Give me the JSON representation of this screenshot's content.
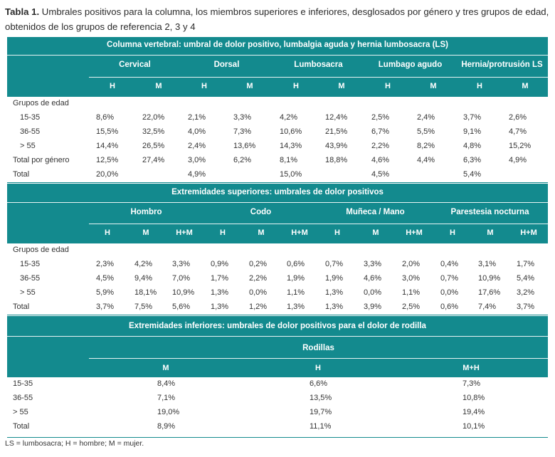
{
  "caption": {
    "bold": "Tabla 1.",
    "text": " Umbrales positivos para la columna, los miembros superiores e inferiores, desglosados por género y tres grupos de edad, obtenidos de los grupos de referencia 2, 3 y 4"
  },
  "t1": {
    "title": "Columna vertebral: umbral de dolor positivo, lumbalgia aguda y hernia lumbosacra (LS)",
    "groups": [
      "Cervical",
      "Dorsal",
      "Lumbosacra",
      "Lumbago agudo",
      "Hernia/protrusión LS"
    ],
    "subs": [
      "H",
      "M",
      "H",
      "M",
      "H",
      "M",
      "H",
      "M",
      "H",
      "M"
    ],
    "section_label": "Grupos de edad",
    "rows": [
      {
        "label": "15-35",
        "values": [
          "8,6%",
          "22,0%",
          "2,1%",
          "3,3%",
          "4,2%",
          "12,4%",
          "2,5%",
          "2,4%",
          "3,7%",
          "2,6%"
        ]
      },
      {
        "label": "36-55",
        "values": [
          "15,5%",
          "32,5%",
          "4,0%",
          "7,3%",
          "10,6%",
          "21,5%",
          "6,7%",
          "5,5%",
          "9,1%",
          "4,7%"
        ]
      },
      {
        "label": "> 55",
        "values": [
          "14,4%",
          "26,5%",
          "2,4%",
          "13,6%",
          "14,3%",
          "43,9%",
          "2,2%",
          "8,2%",
          "4,8%",
          "15,2%"
        ]
      },
      {
        "label": "Total por género",
        "values": [
          "12,5%",
          "27,4%",
          "3,0%",
          "6,2%",
          "8,1%",
          "18,8%",
          "4,6%",
          "4,4%",
          "6,3%",
          "4,9%"
        ]
      },
      {
        "label": "Total",
        "values": [
          "20,0%",
          "",
          "4,9%",
          "",
          "15,0%",
          "",
          "4,5%",
          "",
          "5,4%",
          ""
        ]
      }
    ]
  },
  "t2": {
    "title": "Extremidades superiores: umbrales de dolor positivos",
    "groups": [
      "Hombro",
      "Codo",
      "Muñeca / Mano",
      "Parestesia nocturna"
    ],
    "subs": [
      "H",
      "M",
      "H+M",
      "H",
      "M",
      "H+M",
      "H",
      "M",
      "H+M",
      "H",
      "M",
      "H+M"
    ],
    "section_label": "Grupos de edad",
    "rows": [
      {
        "label": "15-35",
        "values": [
          "2,3%",
          "4,2%",
          "3,3%",
          "0,9%",
          "0,2%",
          "0,6%",
          "0,7%",
          "3,3%",
          "2,0%",
          "0,4%",
          "3,1%",
          "1,7%"
        ]
      },
      {
        "label": "36-55",
        "values": [
          "4,5%",
          "9,4%",
          "7,0%",
          "1,7%",
          "2,2%",
          "1,9%",
          "1,9%",
          "4,6%",
          "3,0%",
          "0,7%",
          "10,9%",
          "5,4%"
        ]
      },
      {
        "label": "> 55",
        "values": [
          "5,9%",
          "18,1%",
          "10,9%",
          "1,3%",
          "0,0%",
          "1,1%",
          "1,3%",
          "0,0%",
          "1,1%",
          "0,0%",
          "17,6%",
          "3,2%"
        ]
      },
      {
        "label": "Total",
        "values": [
          "3,7%",
          "7,5%",
          "5,6%",
          "1,3%",
          "1,2%",
          "1,3%",
          "1,3%",
          "3,9%",
          "2,5%",
          "0,6%",
          "7,4%",
          "3,7%"
        ]
      }
    ]
  },
  "t3": {
    "title": "Extremidades inferiores: umbrales de dolor positivos para el dolor de rodilla",
    "group": "Rodillas",
    "subs": [
      "M",
      "H",
      "M+H"
    ],
    "rows": [
      {
        "label": "15-35",
        "values": [
          "8,4%",
          "6,6%",
          "7,3%"
        ]
      },
      {
        "label": "36-55",
        "values": [
          "7,1%",
          "13,5%",
          "10,8%"
        ]
      },
      {
        "label": "> 55",
        "values": [
          "19,0%",
          "19,7%",
          "19,4%"
        ]
      },
      {
        "label": "Total",
        "values": [
          "8,9%",
          "11,1%",
          "10,1%"
        ]
      }
    ]
  },
  "footnote": "LS = lumbosacra; H = hombre; M = mujer."
}
